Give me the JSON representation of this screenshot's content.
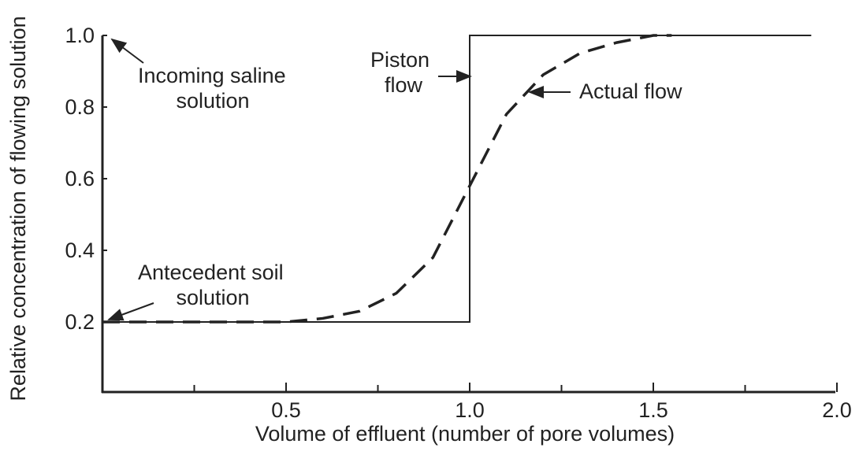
{
  "chart_data": {
    "type": "line",
    "x_label": "Volume of effluent (number of pore volumes)",
    "y_label": "Relative concentration of flowing solution",
    "xlim": [
      0,
      2
    ],
    "ylim": [
      0,
      1
    ],
    "xticks": [
      0.5,
      {
        "value": 1,
        "label": "1.0"
      },
      1.5,
      {
        "value": 2,
        "label": "2.0"
      }
    ],
    "xminorticks": [
      0.25,
      0.75,
      1.25,
      1.75
    ],
    "yticks": [
      0.2,
      0.4,
      0.6,
      0.8,
      {
        "value": 1,
        "label": "1.0"
      }
    ],
    "series": [
      {
        "name": "Piston flow",
        "color": "#222222",
        "line_style": "solid",
        "x": [
          0,
          1,
          1,
          1.93
        ],
        "values": [
          0.2,
          0.2,
          1,
          1
        ]
      },
      {
        "name": "Actual flow",
        "color": "#222222",
        "line_style": "dashed",
        "x": [
          0,
          0.25,
          0.5,
          0.6,
          0.7,
          0.8,
          0.9,
          1.0,
          1.1,
          1.2,
          1.3,
          1.4,
          1.5,
          1.55
        ],
        "values": [
          0.2,
          0.2,
          0.2,
          0.21,
          0.23,
          0.28,
          0.38,
          0.58,
          0.78,
          0.89,
          0.95,
          0.98,
          1.0,
          1.0
        ]
      }
    ],
    "annotations": [
      {
        "lines": [
          "Incoming saline",
          "solution"
        ]
      },
      {
        "lines": [
          "Antecedent soil",
          "solution"
        ]
      },
      {
        "lines": [
          "Piston",
          "flow"
        ]
      },
      {
        "lines": [
          "Actual flow"
        ]
      }
    ]
  }
}
